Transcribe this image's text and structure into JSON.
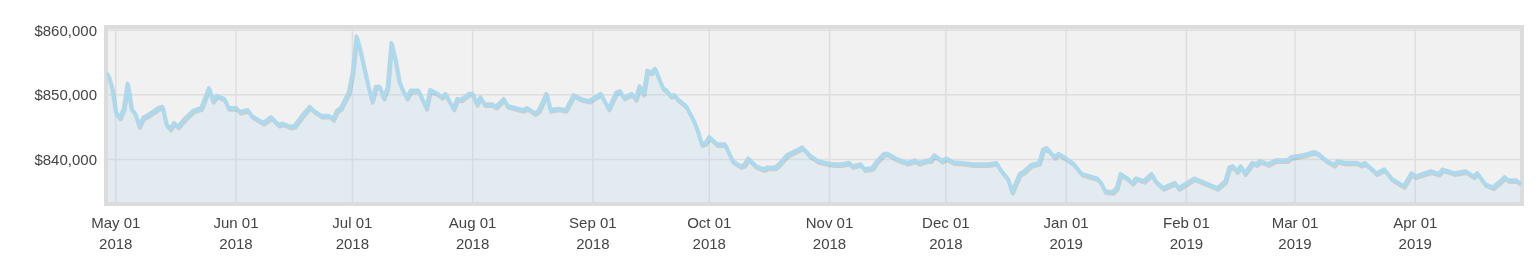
{
  "chart_data": {
    "type": "area",
    "grid": true,
    "xlim": [
      "2018-04-29",
      "2019-04-28"
    ],
    "xticks": [
      {
        "value": "2018-05-01",
        "label": "May 01\n2018"
      },
      {
        "value": "2018-06-01",
        "label": "Jun 01\n2018"
      },
      {
        "value": "2018-07-01",
        "label": "Jul 01\n2018"
      },
      {
        "value": "2018-08-01",
        "label": "Aug 01\n2018"
      },
      {
        "value": "2018-09-01",
        "label": "Sep 01\n2018"
      },
      {
        "value": "2018-10-01",
        "label": "Oct 01\n2018"
      },
      {
        "value": "2018-11-01",
        "label": "Nov 01\n2018"
      },
      {
        "value": "2018-12-01",
        "label": "Dec 01\n2018"
      },
      {
        "value": "2019-01-01",
        "label": "Jan 01\n2019"
      },
      {
        "value": "2019-02-01",
        "label": "Feb 01\n2019"
      },
      {
        "value": "2019-03-01",
        "label": "Mar 01\n2019"
      },
      {
        "value": "2019-04-01",
        "label": "Apr 01\n2019"
      }
    ],
    "ylim": [
      833400,
      860200
    ],
    "yticks": [
      {
        "value": 840000,
        "label": "$840,000"
      },
      {
        "value": 850000,
        "label": "$850,000"
      },
      {
        "value": 860000,
        "label": "$860,000"
      }
    ],
    "x": [
      "2018-04-29",
      "2018-04-30",
      "2018-05-01",
      "2018-05-02",
      "2018-05-03",
      "2018-05-04",
      "2018-05-05",
      "2018-05-06",
      "2018-05-07",
      "2018-05-08",
      "2018-05-09",
      "2018-05-12",
      "2018-05-13",
      "2018-05-14",
      "2018-05-15",
      "2018-05-16",
      "2018-05-17",
      "2018-05-19",
      "2018-05-21",
      "2018-05-23",
      "2018-05-25",
      "2018-05-26",
      "2018-05-27",
      "2018-05-29",
      "2018-05-30",
      "2018-06-01",
      "2018-06-02",
      "2018-06-04",
      "2018-06-05",
      "2018-06-08",
      "2018-06-10",
      "2018-06-12",
      "2018-06-13",
      "2018-06-15",
      "2018-06-16",
      "2018-06-18",
      "2018-06-20",
      "2018-06-21",
      "2018-06-23",
      "2018-06-25",
      "2018-06-26",
      "2018-06-27",
      "2018-06-28",
      "2018-06-30",
      "2018-07-01",
      "2018-07-02",
      "2018-07-03",
      "2018-07-04",
      "2018-07-05",
      "2018-07-06",
      "2018-07-07",
      "2018-07-08",
      "2018-07-09",
      "2018-07-10",
      "2018-07-11",
      "2018-07-12",
      "2018-07-13",
      "2018-07-14",
      "2018-07-15",
      "2018-07-16",
      "2018-07-18",
      "2018-07-20",
      "2018-07-21",
      "2018-07-23",
      "2018-07-24",
      "2018-07-25",
      "2018-07-27",
      "2018-07-28",
      "2018-07-29",
      "2018-07-31",
      "2018-08-01",
      "2018-08-02",
      "2018-08-03",
      "2018-08-04",
      "2018-08-06",
      "2018-08-07",
      "2018-08-09",
      "2018-08-10",
      "2018-08-12",
      "2018-08-14",
      "2018-08-15",
      "2018-08-17",
      "2018-08-18",
      "2018-08-20",
      "2018-08-21",
      "2018-08-23",
      "2018-08-25",
      "2018-08-27",
      "2018-08-29",
      "2018-08-31",
      "2018-09-03",
      "2018-09-05",
      "2018-09-07",
      "2018-09-08",
      "2018-09-09",
      "2018-09-11",
      "2018-09-12",
      "2018-09-13",
      "2018-09-14",
      "2018-09-15",
      "2018-09-16",
      "2018-09-17",
      "2018-09-19",
      "2018-09-20",
      "2018-09-21",
      "2018-09-22",
      "2018-09-23",
      "2018-09-25",
      "2018-09-27",
      "2018-09-28",
      "2018-09-29",
      "2018-09-30",
      "2018-10-01",
      "2018-10-03",
      "2018-10-05",
      "2018-10-07",
      "2018-10-09",
      "2018-10-10",
      "2018-10-11",
      "2018-10-13",
      "2018-10-15",
      "2018-10-16",
      "2018-10-18",
      "2018-10-19",
      "2018-10-21",
      "2018-10-23",
      "2018-10-25",
      "2018-10-27",
      "2018-10-29",
      "2018-10-31",
      "2018-11-02",
      "2018-11-04",
      "2018-11-06",
      "2018-11-07",
      "2018-11-09",
      "2018-11-10",
      "2018-11-12",
      "2018-11-13",
      "2018-11-15",
      "2018-11-16",
      "2018-11-18",
      "2018-11-21",
      "2018-11-23",
      "2018-11-24",
      "2018-11-26",
      "2018-11-27",
      "2018-11-28",
      "2018-11-30",
      "2018-12-01",
      "2018-12-03",
      "2018-12-05",
      "2018-12-08",
      "2018-12-10",
      "2018-12-12",
      "2018-12-14",
      "2018-12-15",
      "2018-12-17",
      "2018-12-18",
      "2018-12-20",
      "2018-12-21",
      "2018-12-23",
      "2018-12-25",
      "2018-12-26",
      "2018-12-27",
      "2018-12-29",
      "2018-12-30",
      "2019-01-01",
      "2019-01-03",
      "2019-01-05",
      "2019-01-09",
      "2019-01-10",
      "2019-01-11",
      "2019-01-13",
      "2019-01-14",
      "2019-01-15",
      "2019-01-17",
      "2019-01-18",
      "2019-01-19",
      "2019-01-21",
      "2019-01-23",
      "2019-01-24",
      "2019-01-26",
      "2019-01-27",
      "2019-01-29",
      "2019-01-30",
      "2019-02-03",
      "2019-02-09",
      "2019-02-11",
      "2019-02-12",
      "2019-02-13",
      "2019-02-14",
      "2019-02-15",
      "2019-02-16",
      "2019-02-18",
      "2019-02-19",
      "2019-02-20",
      "2019-02-22",
      "2019-02-24",
      "2019-02-27",
      "2019-02-28",
      "2019-03-03",
      "2019-03-06",
      "2019-03-07",
      "2019-03-09",
      "2019-03-11",
      "2019-03-12",
      "2019-03-14",
      "2019-03-17",
      "2019-03-18",
      "2019-03-19",
      "2019-03-22",
      "2019-03-24",
      "2019-03-26",
      "2019-03-29",
      "2019-03-31",
      "2019-04-01",
      "2019-04-05",
      "2019-04-07",
      "2019-04-08",
      "2019-04-11",
      "2019-04-14",
      "2019-04-16",
      "2019-04-17",
      "2019-04-19",
      "2019-04-21",
      "2019-04-23",
      "2019-04-24",
      "2019-04-25",
      "2019-04-27",
      "2019-04-28"
    ],
    "series": [
      {
        "color": "#a9daf0",
        "values": [
          853200,
          851100,
          847300,
          846500,
          847900,
          851800,
          847900,
          847100,
          845200,
          846500,
          846800,
          848000,
          848200,
          845500,
          844800,
          845700,
          845100,
          846500,
          847600,
          848000,
          851100,
          849100,
          849900,
          849400,
          848000,
          848000,
          847400,
          847700,
          846800,
          845700,
          846600,
          845400,
          845600,
          845100,
          845200,
          846800,
          848200,
          847600,
          846800,
          846800,
          846300,
          847600,
          848000,
          850400,
          853500,
          859100,
          856900,
          854200,
          851500,
          849100,
          851300,
          851300,
          849600,
          851100,
          858100,
          855600,
          852200,
          850700,
          849600,
          850700,
          850700,
          848000,
          850800,
          850200,
          849700,
          850200,
          847900,
          849400,
          849300,
          850200,
          850200,
          848600,
          849700,
          848600,
          848600,
          848200,
          849400,
          848300,
          848000,
          847700,
          848000,
          847200,
          847600,
          850200,
          847700,
          847900,
          847700,
          850000,
          849400,
          849100,
          850200,
          847900,
          850400,
          850600,
          849600,
          850200,
          849400,
          851400,
          850200,
          853800,
          853500,
          854100,
          851100,
          850700,
          849900,
          850000,
          849300,
          848300,
          846000,
          844400,
          842400,
          842600,
          843500,
          842400,
          842400,
          839800,
          839000,
          839200,
          840200,
          839000,
          838500,
          838800,
          838800,
          839300,
          840700,
          841300,
          841900,
          840600,
          839800,
          839500,
          839300,
          839300,
          839500,
          839000,
          839300,
          838500,
          838700,
          839600,
          840900,
          840900,
          840200,
          839500,
          839900,
          839500,
          839900,
          839900,
          840700,
          839800,
          840200,
          839600,
          839500,
          839300,
          839300,
          839300,
          839500,
          838500,
          837000,
          835000,
          837800,
          838100,
          839200,
          839500,
          841600,
          841800,
          840400,
          840900,
          840200,
          839300,
          837800,
          837100,
          836400,
          835100,
          835000,
          835600,
          837800,
          837000,
          836400,
          837100,
          836700,
          837800,
          836700,
          835600,
          835900,
          836400,
          835600,
          837100,
          835600,
          836700,
          838800,
          839000,
          838200,
          839000,
          837900,
          839500,
          839300,
          839800,
          839300,
          839900,
          839900,
          840400,
          840700,
          841200,
          840900,
          839900,
          839200,
          839800,
          839500,
          839500,
          839200,
          839500,
          837900,
          838500,
          837000,
          835900,
          837900,
          837400,
          838200,
          837800,
          838500,
          837900,
          838200,
          837400,
          837900,
          836200,
          835700,
          836700,
          837300,
          836800,
          836800,
          836400
        ]
      }
    ]
  }
}
